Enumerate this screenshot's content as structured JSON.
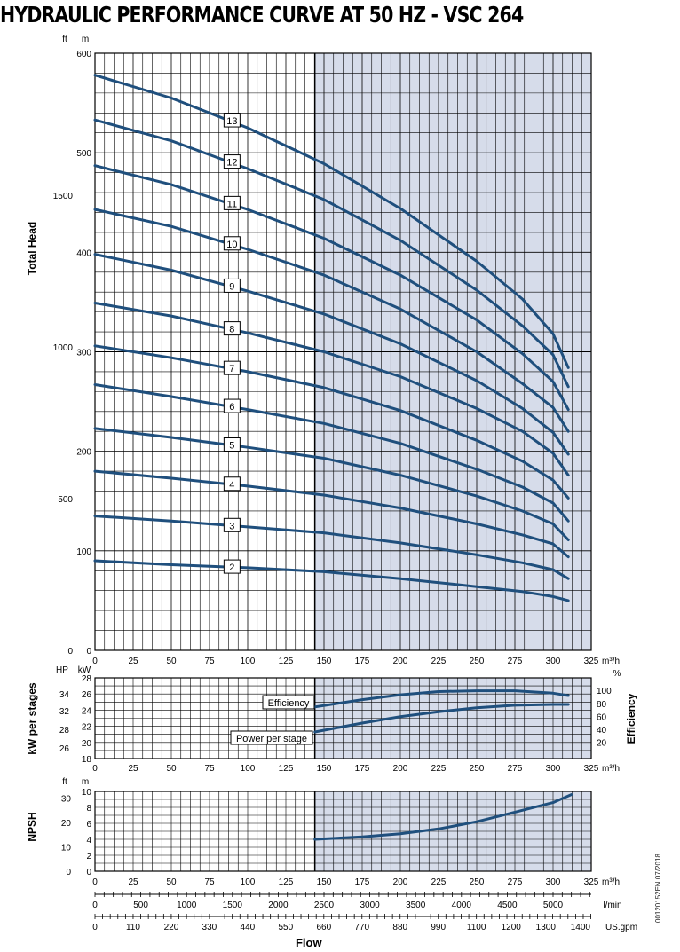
{
  "title": "HYDRAULIC PERFORMANCE CURVE AT 50 HZ - VSC 264",
  "doc_code": "00120152EN 07/2018",
  "colors": {
    "curve": "#1f4f7d",
    "shade": "#d6dcea",
    "grid": "#000000"
  },
  "chart_data": [
    {
      "type": "line",
      "name": "head",
      "ylabel": "Total Head",
      "xlabel": "m³/h",
      "xlim": [
        0,
        325
      ],
      "ylim": [
        0,
        600
      ],
      "x_ticks": [
        0,
        25,
        50,
        75,
        100,
        125,
        150,
        175,
        200,
        225,
        250,
        275,
        300,
        325
      ],
      "x_unit_label": "m³/h",
      "y_unit_left": "ft",
      "y_unit_right": "m",
      "y_ticks_m": [
        0,
        100,
        200,
        300,
        400,
        500,
        600
      ],
      "y_ticks_ft": [
        0,
        500,
        1000,
        1500
      ],
      "shaded_from": 144,
      "series_x": [
        0,
        50,
        100,
        150,
        200,
        250,
        280,
        300,
        310
      ],
      "series": [
        {
          "name": "2",
          "values": [
            90,
            86,
            83,
            79,
            72,
            64,
            59,
            54,
            50
          ]
        },
        {
          "name": "3",
          "values": [
            135,
            130,
            124,
            118,
            108,
            96,
            88,
            81,
            72
          ]
        },
        {
          "name": "4",
          "values": [
            180,
            173,
            165,
            156,
            143,
            127,
            116,
            107,
            94
          ]
        },
        {
          "name": "5",
          "values": [
            223,
            214,
            204,
            193,
            176,
            155,
            140,
            127,
            111
          ]
        },
        {
          "name": "6",
          "values": [
            267,
            255,
            242,
            228,
            208,
            182,
            164,
            148,
            130
          ]
        },
        {
          "name": "7",
          "values": [
            306,
            294,
            280,
            264,
            241,
            211,
            190,
            171,
            153
          ]
        },
        {
          "name": "8",
          "values": [
            349,
            336,
            319,
            300,
            275,
            243,
            220,
            198,
            176
          ]
        },
        {
          "name": "9",
          "values": [
            398,
            382,
            361,
            338,
            308,
            271,
            243,
            219,
            197
          ]
        },
        {
          "name": "10",
          "values": [
            443,
            426,
            403,
            377,
            343,
            300,
            268,
            244,
            220
          ]
        },
        {
          "name": "11",
          "values": [
            487,
            468,
            443,
            414,
            377,
            332,
            298,
            270,
            242
          ]
        },
        {
          "name": "12",
          "values": [
            533,
            512,
            484,
            453,
            412,
            362,
            326,
            297,
            265
          ]
        },
        {
          "name": "13",
          "values": [
            578,
            555,
            525,
            489,
            444,
            391,
            353,
            318,
            284
          ]
        }
      ],
      "stage_label_x": 88
    },
    {
      "type": "line",
      "name": "power-efficiency",
      "ylabel": "kW per stages",
      "y2label": "Efficiency",
      "xlim": [
        0,
        325
      ],
      "ylim": [
        18,
        28
      ],
      "x_ticks": [
        0,
        25,
        50,
        75,
        100,
        125,
        150,
        175,
        200,
        225,
        250,
        275,
        300,
        325
      ],
      "x_unit_label": "m³/h",
      "y_unit_hp": "HP",
      "y_unit_kw": "kW",
      "y_unit_pct": "%",
      "y_ticks_kw": [
        18,
        20,
        22,
        24,
        26,
        28
      ],
      "hp_ticks": [
        26,
        28,
        32,
        34
      ],
      "eff_ticks": [
        20,
        40,
        60,
        80,
        100
      ],
      "efficiency": {
        "label": "Efficiency",
        "x": [
          144,
          175,
          200,
          225,
          250,
          275,
          300,
          310
        ],
        "values": [
          24.4,
          25.3,
          25.9,
          26.3,
          26.4,
          26.4,
          26.1,
          25.8
        ]
      },
      "power": {
        "label": "Power per stage",
        "x": [
          144,
          175,
          200,
          225,
          250,
          275,
          300,
          310
        ],
        "values": [
          21.3,
          22.4,
          23.2,
          23.8,
          24.3,
          24.6,
          24.7,
          24.7
        ]
      }
    },
    {
      "type": "line",
      "name": "npsh",
      "ylabel": "NPSH",
      "xlim": [
        0,
        325
      ],
      "ylim": [
        0,
        10
      ],
      "x_ticks": [
        0,
        25,
        50,
        75,
        100,
        125,
        150,
        175,
        200,
        225,
        250,
        275,
        300,
        325
      ],
      "y_unit_left": "ft",
      "y_unit_right": "m",
      "y_ticks_m": [
        0,
        2,
        4,
        6,
        8,
        10
      ],
      "y_ticks_ft": [
        0,
        10,
        20,
        30
      ],
      "series": {
        "x": [
          144,
          175,
          200,
          225,
          250,
          275,
          300,
          312
        ],
        "values": [
          4.0,
          4.3,
          4.7,
          5.3,
          6.2,
          7.4,
          8.6,
          9.6
        ]
      },
      "x_unit_label": "m³/h",
      "lmin_unit": "l/min",
      "gpm_unit": "US.gpm",
      "lmin_ticks": [
        0,
        500,
        1000,
        1500,
        2000,
        2500,
        3000,
        3500,
        4000,
        4500,
        5000
      ],
      "gpm_ticks": [
        0,
        110,
        220,
        330,
        440,
        550,
        660,
        770,
        880,
        990,
        1100,
        1200,
        1300,
        1400
      ],
      "xlabel": "Flow"
    }
  ]
}
